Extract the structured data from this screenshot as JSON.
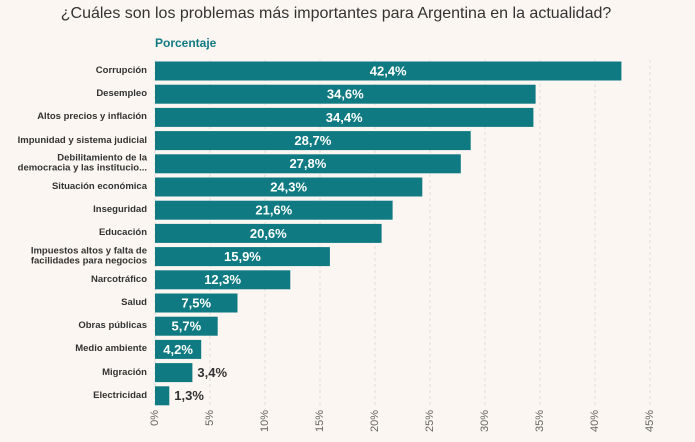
{
  "chart_data": {
    "type": "bar",
    "orientation": "horizontal",
    "title": "¿Cuáles son los problemas más importantes para Argentina en la actualidad?",
    "xlabel": "Porcentaje",
    "categories": [
      "Corrupción",
      "Desempleo",
      "Altos precios y inflación",
      "Impunidad y sistema judicial",
      "Debilitamiento de la democracia y las institucio...",
      "Situación económica",
      "Inseguridad",
      "Educación",
      "Impuestos altos y falta de facilidades para negocios",
      "Narcotráfico",
      "Salud",
      "Obras públicas",
      "Medio ambiente",
      "Migración",
      "Electricidad"
    ],
    "values": [
      42.4,
      34.6,
      34.4,
      28.7,
      27.8,
      24.3,
      21.6,
      20.6,
      15.9,
      12.3,
      7.5,
      5.7,
      4.2,
      3.4,
      1.3
    ],
    "value_labels": [
      "42,4%",
      "34,6%",
      "34,4%",
      "28,7%",
      "27,8%",
      "24,3%",
      "21,6%",
      "20,6%",
      "15,9%",
      "12,3%",
      "7,5%",
      "5,7%",
      "4,2%",
      "3,4%",
      "1,3%"
    ],
    "color": "#0f7a82",
    "xlim": [
      0,
      45
    ],
    "xticks": [
      {
        "value": 0,
        "label": "0%"
      },
      {
        "value": 5,
        "label": "5%"
      },
      {
        "value": 10,
        "label": "10%"
      },
      {
        "value": 15,
        "label": "15%"
      },
      {
        "value": 20,
        "label": "20%"
      },
      {
        "value": 25,
        "label": "25%"
      },
      {
        "value": 30,
        "label": "30%"
      },
      {
        "value": 35,
        "label": "35%"
      },
      {
        "value": 40,
        "label": "40%"
      },
      {
        "value": 45,
        "label": "45%"
      }
    ],
    "grid": true
  }
}
